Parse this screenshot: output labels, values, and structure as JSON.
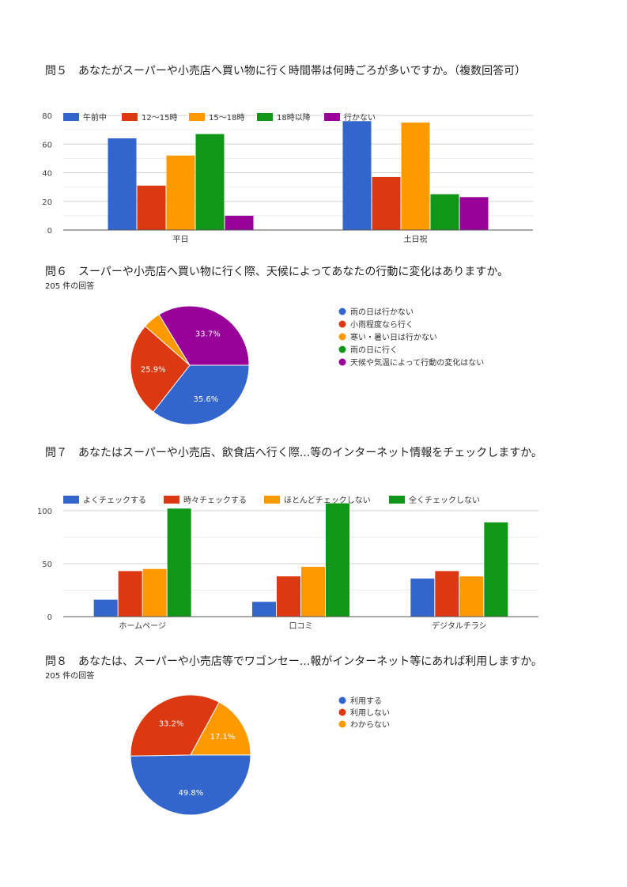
{
  "sections": {
    "q5": {
      "title": "問５　あなたがスーパーや小売店へ買い物に行く時間帯は何時ごろが多いですか。（複数回答可）"
    },
    "q6": {
      "title": "問６　スーパーや小売店へ買い物に行く際、天候によってあなたの行動に変化はありますか。",
      "subtitle": "205 件の回答"
    },
    "q7": {
      "title": "問７　あなたはスーパーや小売店、飲食店へ行く際...等のインターネット情報をチェックしますか。"
    },
    "q8": {
      "title": "問８　あなたは、スーパーや小売店等でワゴンセー...報がインターネット等にあれば利用しますか。",
      "subtitle": "205 件の回答"
    }
  },
  "chart_data": [
    {
      "id": "q5",
      "type": "bar",
      "categories": [
        "平日",
        "土日祝"
      ],
      "series": [
        {
          "name": "午前中",
          "color": "#3366cc",
          "values": [
            64,
            76
          ]
        },
        {
          "name": "12〜15時",
          "color": "#dc3912",
          "values": [
            31,
            37
          ]
        },
        {
          "name": "15〜18時",
          "color": "#ff9900",
          "values": [
            52,
            75
          ]
        },
        {
          "name": "18時以降",
          "color": "#109618",
          "values": [
            67,
            25
          ]
        },
        {
          "name": "行かない",
          "color": "#990099",
          "values": [
            10,
            23
          ]
        }
      ],
      "ylim": [
        0,
        80
      ],
      "yticks": [
        0,
        20,
        40,
        60,
        80
      ],
      "grid": true,
      "legend": "top"
    },
    {
      "id": "q6",
      "type": "pie",
      "labels": [
        "雨の日は行かない",
        "小雨程度なら行く",
        "寒い・暑い日は行かない",
        "雨の日に行く",
        "天候や気温によって行動の変化はない"
      ],
      "colors": [
        "#3366cc",
        "#dc3912",
        "#ff9900",
        "#109618",
        "#990099"
      ],
      "values": [
        35.6,
        25.9,
        4.9,
        0,
        33.7
      ],
      "data_labels": [
        "35.6%",
        "25.9%",
        "",
        "",
        "33.7%"
      ],
      "legend": "right"
    },
    {
      "id": "q7",
      "type": "bar",
      "categories": [
        "ホームページ",
        "口コミ",
        "デジタルチラシ"
      ],
      "series": [
        {
          "name": "よくチェックする",
          "color": "#3366cc",
          "values": [
            16,
            14,
            36
          ]
        },
        {
          "name": "時々チェックする",
          "color": "#dc3912",
          "values": [
            43,
            38,
            43
          ]
        },
        {
          "name": "ほとんどチェックしない",
          "color": "#ff9900",
          "values": [
            45,
            47,
            38
          ]
        },
        {
          "name": "全くチェックしない",
          "color": "#109618",
          "values": [
            102,
            107,
            89
          ]
        }
      ],
      "ylim": [
        0,
        100
      ],
      "yticks": [
        0,
        50,
        100
      ],
      "grid": true,
      "legend": "top"
    },
    {
      "id": "q8",
      "type": "pie",
      "labels": [
        "利用する",
        "利用しない",
        "わからない"
      ],
      "colors": [
        "#3366cc",
        "#dc3912",
        "#ff9900"
      ],
      "values": [
        49.8,
        33.2,
        17.1
      ],
      "data_labels": [
        "49.8%",
        "33.2%",
        "17.1%"
      ],
      "legend": "right"
    }
  ]
}
